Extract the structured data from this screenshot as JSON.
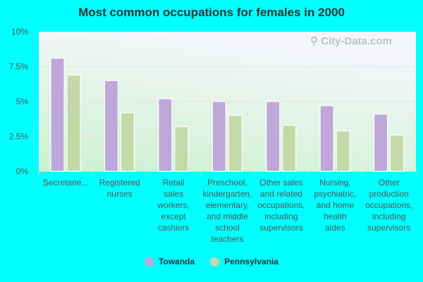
{
  "chart_data": {
    "type": "bar",
    "title": "Most common occupations for females in 2000",
    "categories": [
      [
        "Secretarie..."
      ],
      [
        "Registered",
        "nurses"
      ],
      [
        "Retail",
        "sales",
        "workers,",
        "except",
        "cashiers"
      ],
      [
        "Preschool,",
        "kindergarten,",
        "elementary,",
        "and middle",
        "school",
        "teachers"
      ],
      [
        "Other sales",
        "and related",
        "occupations,",
        "including",
        "supervisors"
      ],
      [
        "Nursing,",
        "psychiatric,",
        "and home",
        "health",
        "aides"
      ],
      [
        "Other",
        "production",
        "occupations,",
        "including",
        "supervisors"
      ]
    ],
    "series": [
      {
        "name": "Towanda",
        "color": "#bea8d9",
        "values": [
          8.1,
          6.5,
          5.2,
          5.0,
          5.0,
          4.7,
          4.1
        ]
      },
      {
        "name": "Pennsylvania",
        "color": "#c4d9a8",
        "values": [
          6.9,
          4.2,
          3.2,
          4.0,
          3.3,
          2.9,
          2.6
        ]
      }
    ],
    "yticks": [
      "0%",
      "2.5%",
      "5%",
      "7.5%",
      "10%"
    ],
    "ytick_values": [
      0,
      2.5,
      5,
      7.5,
      10
    ],
    "ylim": [
      0,
      10
    ],
    "xlabel": "",
    "ylabel": "",
    "grid": true,
    "legend": "bottom-center",
    "watermark": "City-Data.com"
  }
}
